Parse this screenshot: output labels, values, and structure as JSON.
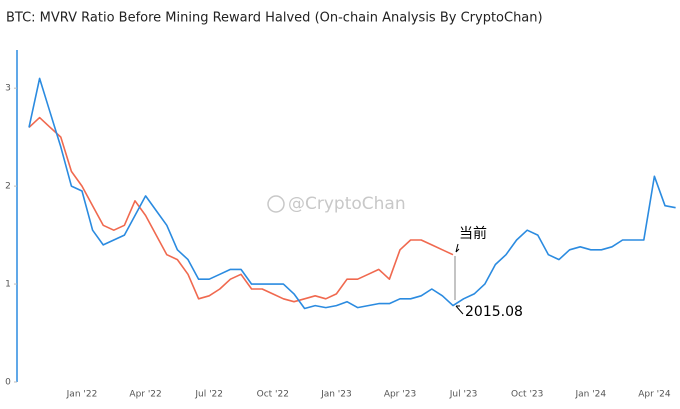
{
  "chart_data": {
    "type": "line",
    "title": "BTC: MVRV Ratio Before Mining Reward Halved (On-chain Analysis By CryptoChan)",
    "categories": [
      null,
      null,
      null,
      null,
      null,
      "Jan '22",
      null,
      null,
      null,
      null,
      null,
      "Apr '22",
      null,
      null,
      null,
      null,
      null,
      "Jul '22",
      null,
      null,
      null,
      null,
      null,
      "Oct '22",
      null,
      null,
      null,
      null,
      null,
      "Jan '23",
      null,
      null,
      null,
      null,
      null,
      "Apr '23",
      null,
      null,
      null,
      null,
      null,
      "Jul '23",
      null,
      null,
      null,
      null,
      null,
      "Oct '23",
      null,
      null,
      null,
      null,
      null,
      "Jan '24",
      null,
      null,
      null,
      null,
      null,
      "Apr '24",
      null,
      null
    ],
    "series": [
      {
        "color": "#2b8be0",
        "values": [
          2.6,
          3.1,
          2.75,
          2.4,
          2.0,
          1.95,
          1.55,
          1.4,
          1.45,
          1.5,
          1.7,
          1.9,
          1.75,
          1.6,
          1.35,
          1.25,
          1.05,
          1.05,
          1.1,
          1.15,
          1.15,
          1.0,
          1.0,
          1.0,
          1.0,
          0.9,
          0.75,
          0.78,
          0.76,
          0.78,
          0.82,
          0.76,
          0.78,
          0.8,
          0.8,
          0.85,
          0.85,
          0.88,
          0.95,
          0.88,
          0.78,
          0.85,
          0.9,
          1.0,
          1.2,
          1.3,
          1.45,
          1.55,
          1.5,
          1.3,
          1.25,
          1.35,
          1.38,
          1.35,
          1.35,
          1.38,
          1.45,
          1.45,
          1.45,
          2.1,
          1.8,
          1.78
        ]
      },
      {
        "color": "#f0694f",
        "values": [
          2.6,
          2.7,
          2.6,
          2.5,
          2.15,
          2.0,
          1.8,
          1.6,
          1.55,
          1.6,
          1.85,
          1.7,
          1.5,
          1.3,
          1.25,
          1.1,
          0.85,
          0.88,
          0.95,
          1.05,
          1.1,
          0.95,
          0.95,
          0.9,
          0.85,
          0.82,
          0.85,
          0.88,
          0.85,
          0.9,
          1.05,
          1.05,
          1.1,
          1.15,
          1.05,
          1.35,
          1.45,
          1.45,
          1.4,
          1.35,
          1.3,
          null,
          null,
          null,
          null,
          null,
          null,
          null,
          null,
          null,
          null,
          null,
          null,
          null,
          null,
          null,
          null,
          null,
          null,
          null,
          null,
          null
        ]
      }
    ],
    "ylim": [
      0,
      3.4
    ],
    "yticks": [
      0,
      1,
      2,
      3
    ],
    "annotations": [
      "当前",
      "2015.08"
    ],
    "watermark": "@CryptoChan"
  }
}
